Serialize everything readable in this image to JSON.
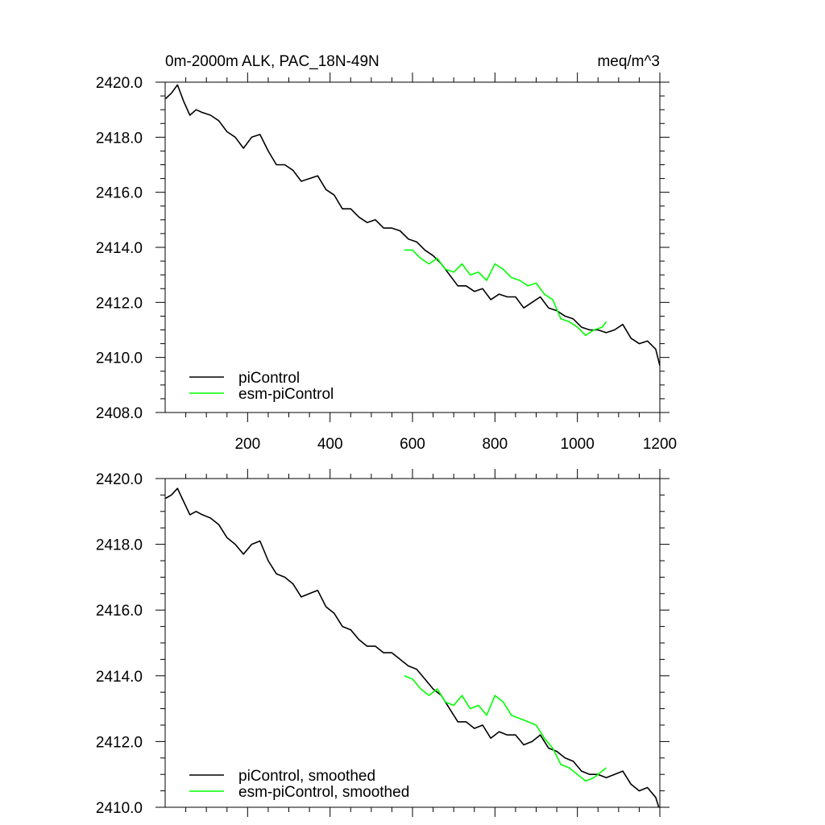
{
  "chart_data": [
    {
      "type": "line",
      "title": "0m-2000m ALK, PAC_18N-49N",
      "units": "meq/m^3",
      "xlim": [
        0,
        1200
      ],
      "ylim": [
        2408,
        2420
      ],
      "xticks": [
        200,
        400,
        600,
        800,
        1000,
        1200
      ],
      "xtick_labels": [
        "200",
        "400",
        "600",
        "800",
        "1000",
        "1200"
      ],
      "yticks": [
        2408,
        2410,
        2412,
        2414,
        2416,
        2418,
        2420
      ],
      "ytick_labels": [
        "2408.0",
        "2410.0",
        "2412.0",
        "2414.0",
        "2416.0",
        "2418.0",
        "2420.0"
      ],
      "legend_position": "bottom-left",
      "series": [
        {
          "name": "piControl",
          "color": "#000000",
          "x": [
            1,
            15,
            30,
            45,
            60,
            75,
            90,
            110,
            130,
            150,
            170,
            190,
            210,
            230,
            250,
            270,
            290,
            310,
            330,
            350,
            370,
            390,
            410,
            430,
            450,
            470,
            490,
            510,
            530,
            550,
            570,
            590,
            610,
            630,
            650,
            670,
            690,
            710,
            730,
            750,
            770,
            790,
            810,
            830,
            850,
            870,
            890,
            910,
            930,
            950,
            970,
            990,
            1010,
            1030,
            1050,
            1070,
            1090,
            1110,
            1130,
            1150,
            1170,
            1190,
            1200
          ],
          "y": [
            2419.4,
            2419.6,
            2419.9,
            2419.3,
            2418.8,
            2419.0,
            2418.9,
            2418.8,
            2418.6,
            2418.2,
            2418.0,
            2417.6,
            2418.0,
            2418.1,
            2417.5,
            2417.0,
            2417.0,
            2416.8,
            2416.4,
            2416.5,
            2416.6,
            2416.1,
            2415.9,
            2415.4,
            2415.4,
            2415.1,
            2414.9,
            2415.0,
            2414.7,
            2414.7,
            2414.6,
            2414.3,
            2414.2,
            2413.9,
            2413.7,
            2413.4,
            2413.0,
            2412.6,
            2412.6,
            2412.4,
            2412.5,
            2412.1,
            2412.3,
            2412.2,
            2412.2,
            2411.8,
            2412.0,
            2412.2,
            2411.8,
            2411.7,
            2411.5,
            2411.4,
            2411.1,
            2411.0,
            2411.0,
            2410.9,
            2411.0,
            2411.2,
            2410.7,
            2410.5,
            2410.6,
            2410.3,
            2409.7
          ]
        },
        {
          "name": "esm-piControl",
          "color": "#00ff00",
          "x": [
            580,
            600,
            620,
            640,
            660,
            680,
            700,
            720,
            740,
            760,
            780,
            800,
            820,
            840,
            860,
            880,
            900,
            920,
            940,
            960,
            980,
            1000,
            1020,
            1040,
            1060,
            1070
          ],
          "y": [
            2413.9,
            2413.9,
            2413.6,
            2413.4,
            2413.6,
            2413.2,
            2413.1,
            2413.4,
            2413.0,
            2413.1,
            2412.8,
            2413.4,
            2413.2,
            2412.9,
            2412.8,
            2412.6,
            2412.7,
            2412.3,
            2412.1,
            2411.4,
            2411.3,
            2411.1,
            2410.8,
            2411.0,
            2411.1,
            2411.3
          ]
        }
      ]
    },
    {
      "type": "line",
      "title": "",
      "xlim": [
        0,
        1200
      ],
      "ylim": [
        2410,
        2420
      ],
      "xticks": [
        200,
        400,
        600,
        800,
        1000,
        1200
      ],
      "yticks": [
        2410,
        2412,
        2414,
        2416,
        2418,
        2420
      ],
      "ytick_labels": [
        "2410.0",
        "2412.0",
        "2414.0",
        "2416.0",
        "2418.0",
        "2420.0"
      ],
      "legend_position": "bottom-left",
      "series": [
        {
          "name": "piControl, smoothed",
          "color": "#000000",
          "x": [
            1,
            15,
            30,
            45,
            60,
            75,
            90,
            110,
            130,
            150,
            170,
            190,
            210,
            230,
            250,
            270,
            290,
            310,
            330,
            350,
            370,
            390,
            410,
            430,
            450,
            470,
            490,
            510,
            530,
            550,
            570,
            590,
            610,
            630,
            650,
            670,
            690,
            710,
            730,
            750,
            770,
            790,
            810,
            830,
            850,
            870,
            890,
            910,
            930,
            950,
            970,
            990,
            1010,
            1030,
            1050,
            1070,
            1090,
            1110,
            1130,
            1150,
            1170,
            1190,
            1200
          ],
          "y": [
            2419.4,
            2419.5,
            2419.7,
            2419.3,
            2418.9,
            2419.0,
            2418.9,
            2418.8,
            2418.6,
            2418.2,
            2418.0,
            2417.7,
            2418.0,
            2418.1,
            2417.5,
            2417.1,
            2417.0,
            2416.8,
            2416.4,
            2416.5,
            2416.6,
            2416.1,
            2415.9,
            2415.5,
            2415.4,
            2415.1,
            2414.9,
            2414.9,
            2414.7,
            2414.7,
            2414.5,
            2414.3,
            2414.2,
            2413.9,
            2413.6,
            2413.4,
            2413.0,
            2412.6,
            2412.6,
            2412.4,
            2412.5,
            2412.1,
            2412.3,
            2412.2,
            2412.2,
            2411.9,
            2412.0,
            2412.2,
            2411.8,
            2411.7,
            2411.5,
            2411.4,
            2411.1,
            2411.0,
            2411.0,
            2410.9,
            2411.0,
            2411.1,
            2410.7,
            2410.5,
            2410.6,
            2410.3,
            2409.9
          ]
        },
        {
          "name": "esm-piControl, smoothed",
          "color": "#00ff00",
          "x": [
            580,
            600,
            620,
            640,
            660,
            680,
            700,
            720,
            740,
            760,
            780,
            800,
            820,
            840,
            860,
            880,
            900,
            920,
            940,
            960,
            980,
            1000,
            1020,
            1040,
            1060,
            1070
          ],
          "y": [
            2414.0,
            2413.9,
            2413.6,
            2413.4,
            2413.6,
            2413.2,
            2413.1,
            2413.4,
            2413.0,
            2413.1,
            2412.8,
            2413.4,
            2413.2,
            2412.8,
            2412.7,
            2412.6,
            2412.5,
            2412.1,
            2411.8,
            2411.3,
            2411.2,
            2411.0,
            2410.8,
            2410.9,
            2411.1,
            2411.2
          ]
        }
      ]
    }
  ]
}
